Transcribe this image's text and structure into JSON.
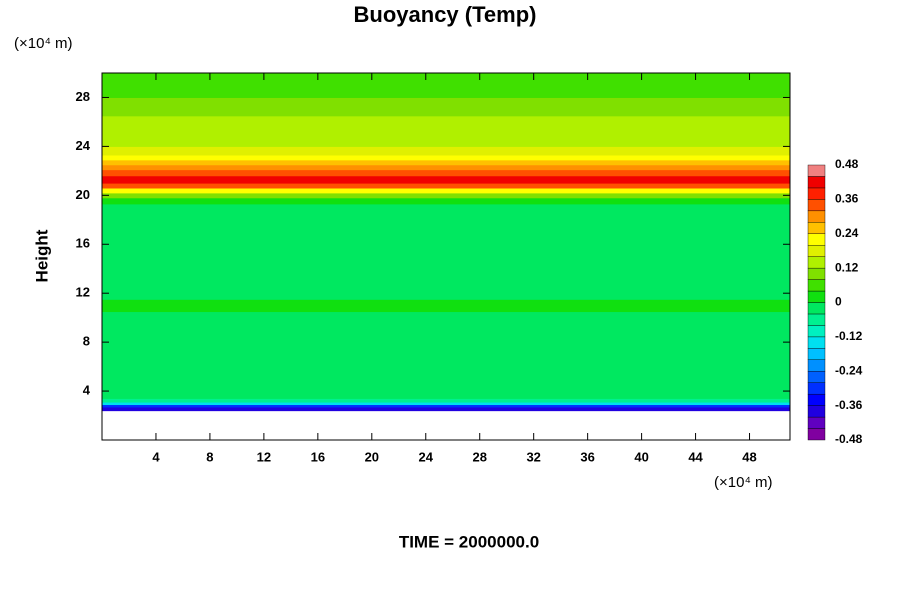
{
  "chart_data": {
    "type": "heatmap",
    "title": "Buoyancy (Temp)",
    "y_unit": "(×10⁴ m)",
    "x_unit": "(×10⁴ m)",
    "ylabel": "Height",
    "footer": "TIME = 2000000.0",
    "xlim": [
      0,
      51
    ],
    "ylim": [
      0,
      30
    ],
    "xticks": [
      4,
      8,
      12,
      16,
      20,
      24,
      28,
      32,
      36,
      40,
      44,
      48
    ],
    "yticks": [
      4,
      8,
      12,
      16,
      20,
      24,
      28
    ],
    "y_bins": [
      2.4,
      2.7,
      2.9,
      3.1,
      3.4,
      10.5,
      11.5,
      19.3,
      19.8,
      20.2,
      20.6,
      21.0,
      21.6,
      22.1,
      22.5,
      22.9,
      23.3,
      24.0,
      26.5,
      28.0,
      30.0
    ],
    "values": [
      -0.38,
      -0.3,
      -0.14,
      -0.06,
      -0.02,
      0.02,
      -0.02,
      0.02,
      0.1,
      0.22,
      0.34,
      0.42,
      0.34,
      0.3,
      0.26,
      0.22,
      0.18,
      0.14,
      0.1,
      0.06
    ],
    "colorbar": {
      "lim": [
        -0.48,
        0.48
      ],
      "ticks": [
        0.48,
        0.36,
        0.24,
        0.12,
        0,
        -0.12,
        -0.24,
        -0.36,
        -0.48
      ],
      "colors": [
        "#8000a0",
        "#6000c0",
        "#2000e0",
        "#0000ff",
        "#0030ff",
        "#0060ff",
        "#0090ff",
        "#00c0ff",
        "#00e0f0",
        "#00f0c0",
        "#00f090",
        "#00e860",
        "#10e010",
        "#40e000",
        "#80e000",
        "#b0f000",
        "#e0f000",
        "#ffff00",
        "#ffc000",
        "#ff9000",
        "#ff5000",
        "#ff2000",
        "#f00000",
        "#f08080"
      ]
    }
  }
}
